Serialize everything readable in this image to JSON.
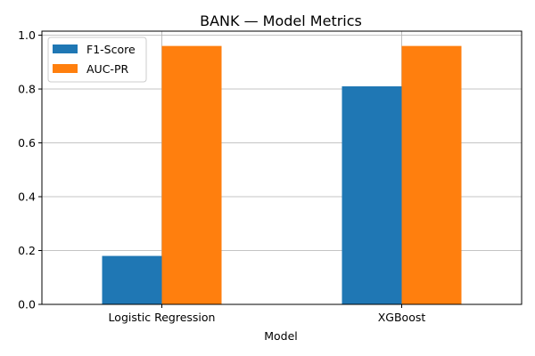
{
  "chart_data": {
    "type": "bar",
    "title": "BANK — Model Metrics",
    "xlabel": "Model",
    "ylabel": "",
    "categories": [
      "Logistic Regression",
      "XGBoost"
    ],
    "series": [
      {
        "name": "F1-Score",
        "values": [
          0.18,
          0.81
        ],
        "color": "#1f77b4"
      },
      {
        "name": "AUC-PR",
        "values": [
          0.96,
          0.96
        ],
        "color": "#ff7f0e"
      }
    ],
    "ylim": [
      0,
      1.0
    ],
    "yticks": [
      "0.0",
      "0.2",
      "0.4",
      "0.6",
      "0.8",
      "1.0"
    ],
    "grid": "on",
    "legend_position": "top-left"
  }
}
